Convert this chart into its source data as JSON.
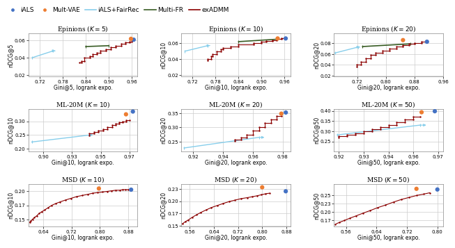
{
  "subplots": [
    {
      "title": "Epinions ($K = 5$)",
      "xlabel": "Gini@5, logrank expo.",
      "ylabel": "nDCG@5",
      "xlim": [
        0.69,
        0.975
      ],
      "ylim": [
        0.018,
        0.068
      ],
      "xticks": [
        0.72,
        0.78,
        0.84,
        0.9,
        0.96
      ],
      "yticks": [
        0.02,
        0.04,
        0.06
      ],
      "iALS_point": [
        0.965,
        0.061
      ],
      "multivae_point": [
        0.958,
        0.062
      ],
      "fairrec_curve": {
        "x": [
          0.7,
          0.755
        ],
        "y": [
          0.04,
          0.048
        ],
        "arrow": true
      },
      "multifr_curve": {
        "x": [
          0.84,
          0.9
        ],
        "y": [
          0.053,
          0.054
        ]
      },
      "exadmm_curve": {
        "x": [
          0.824,
          0.828,
          0.828,
          0.836,
          0.836,
          0.85,
          0.85,
          0.858,
          0.858,
          0.868,
          0.868,
          0.878,
          0.878,
          0.892,
          0.892,
          0.906,
          0.906,
          0.918,
          0.918,
          0.932,
          0.932,
          0.944,
          0.944,
          0.954,
          0.954,
          0.96,
          0.96,
          0.964
        ],
        "y": [
          0.034,
          0.034,
          0.036,
          0.036,
          0.04,
          0.04,
          0.042,
          0.042,
          0.044,
          0.044,
          0.046,
          0.046,
          0.048,
          0.048,
          0.05,
          0.05,
          0.052,
          0.052,
          0.054,
          0.054,
          0.056,
          0.056,
          0.058,
          0.058,
          0.059,
          0.059,
          0.061,
          0.061
        ]
      }
    },
    {
      "title": "Epinions ($K = 10$)",
      "xlabel": "Gini@10, logrank expo.",
      "ylabel": "nDCG@10",
      "xlim": [
        0.69,
        0.975
      ],
      "ylim": [
        0.018,
        0.072
      ],
      "xticks": [
        0.72,
        0.78,
        0.84,
        0.9,
        0.96
      ],
      "yticks": [
        0.02,
        0.04,
        0.06
      ],
      "iALS_point": [
        0.963,
        0.066
      ],
      "multivae_point": [
        0.942,
        0.066
      ],
      "fairrec_curve": {
        "x": [
          0.7,
          0.76
        ],
        "y": [
          0.05,
          0.057
        ],
        "arrow": true
      },
      "multifr_curve": {
        "x": [
          0.84,
          0.94
        ],
        "y": [
          0.062,
          0.065
        ]
      },
      "exadmm_curve": {
        "x": [
          0.76,
          0.76,
          0.768,
          0.768,
          0.772,
          0.772,
          0.782,
          0.782,
          0.794,
          0.794,
          0.8,
          0.8,
          0.82,
          0.82,
          0.84,
          0.84,
          0.88,
          0.88,
          0.9,
          0.9,
          0.912,
          0.912,
          0.928,
          0.928,
          0.94,
          0.94,
          0.952,
          0.952,
          0.962
        ],
        "y": [
          0.038,
          0.04,
          0.04,
          0.044,
          0.044,
          0.046,
          0.046,
          0.05,
          0.05,
          0.052,
          0.052,
          0.054,
          0.054,
          0.056,
          0.056,
          0.058,
          0.058,
          0.06,
          0.06,
          0.062,
          0.062,
          0.063,
          0.063,
          0.064,
          0.064,
          0.065,
          0.065,
          0.066,
          0.066
        ]
      }
    },
    {
      "title": "Epinions ($K = 20$)",
      "xlabel": "Gini@20, logrank expo.",
      "ylabel": "nDCG@20",
      "xlim": [
        0.655,
        0.955
      ],
      "ylim": [
        0.018,
        0.098
      ],
      "xticks": [
        0.72,
        0.8,
        0.88,
        0.96
      ],
      "yticks": [
        0.02,
        0.04,
        0.06,
        0.08
      ],
      "iALS_point": [
        0.915,
        0.083
      ],
      "multivae_point": [
        0.848,
        0.086
      ],
      "fairrec_curve": {
        "x": [
          0.658,
          0.722
        ],
        "y": [
          0.062,
          0.073
        ],
        "arrow": true
      },
      "multifr_curve": {
        "x": [
          0.735,
          0.868
        ],
        "y": [
          0.074,
          0.079
        ]
      },
      "exadmm_curve": {
        "x": [
          0.718,
          0.718,
          0.73,
          0.73,
          0.745,
          0.745,
          0.758,
          0.758,
          0.772,
          0.772,
          0.79,
          0.79,
          0.81,
          0.81,
          0.83,
          0.83,
          0.848,
          0.848,
          0.864,
          0.864,
          0.88,
          0.88,
          0.9,
          0.9,
          0.914
        ],
        "y": [
          0.036,
          0.04,
          0.04,
          0.046,
          0.046,
          0.052,
          0.052,
          0.058,
          0.058,
          0.062,
          0.062,
          0.066,
          0.066,
          0.07,
          0.07,
          0.074,
          0.074,
          0.077,
          0.077,
          0.079,
          0.079,
          0.081,
          0.081,
          0.083,
          0.083
        ]
      }
    },
    {
      "title": "ML-20M ($K = 10$)",
      "xlabel": "Gini@10, logrank expo.",
      "ylabel": "nDCG@10",
      "xlim": [
        0.887,
        0.982
      ],
      "ylim": [
        0.19,
        0.345
      ],
      "xticks": [
        0.9,
        0.925,
        0.95,
        0.975
      ],
      "yticks": [
        0.2,
        0.25,
        0.3
      ],
      "iALS_point": [
        0.978,
        0.335
      ],
      "multivae_point": [
        0.972,
        0.325
      ],
      "fairrec_curve": {
        "x": [
          0.89,
          0.94
        ],
        "y": [
          0.225,
          0.25
        ],
        "arrow": true
      },
      "multifr_curve": null,
      "exadmm_curve": {
        "x": [
          0.94,
          0.94,
          0.944,
          0.944,
          0.948,
          0.948,
          0.952,
          0.952,
          0.956,
          0.956,
          0.96,
          0.96,
          0.963,
          0.963,
          0.966,
          0.966,
          0.969,
          0.969,
          0.972,
          0.972,
          0.975
        ],
        "y": [
          0.248,
          0.255,
          0.255,
          0.26,
          0.26,
          0.265,
          0.265,
          0.27,
          0.27,
          0.278,
          0.278,
          0.285,
          0.285,
          0.29,
          0.29,
          0.296,
          0.296,
          0.3,
          0.3,
          0.303,
          0.303
        ]
      }
    },
    {
      "title": "ML-20M ($K = 20$)",
      "xlabel": "Gini@20, logrank expo.",
      "ylabel": "nDCG@20",
      "xlim": [
        0.912,
        0.985
      ],
      "ylim": [
        0.215,
        0.365
      ],
      "xticks": [
        0.92,
        0.94,
        0.96,
        0.98
      ],
      "yticks": [
        0.25,
        0.3,
        0.35
      ],
      "iALS_point": [
        0.982,
        0.352
      ],
      "multivae_point": [
        0.979,
        0.348
      ],
      "fairrec_curve": {
        "x": [
          0.914,
          0.964
        ],
        "y": [
          0.228,
          0.265
        ],
        "arrow": true
      },
      "multifr_curve": null,
      "exadmm_curve": {
        "x": [
          0.948,
          0.948,
          0.952,
          0.952,
          0.956,
          0.956,
          0.96,
          0.96,
          0.964,
          0.964,
          0.968,
          0.968,
          0.972,
          0.972,
          0.976,
          0.976,
          0.979
        ],
        "y": [
          0.252,
          0.258,
          0.258,
          0.265,
          0.265,
          0.275,
          0.275,
          0.288,
          0.288,
          0.3,
          0.3,
          0.315,
          0.315,
          0.328,
          0.328,
          0.34,
          0.34
        ]
      }
    },
    {
      "title": "ML-20M ($K = 50$)",
      "xlabel": "Gini@50, logrank expo.",
      "ylabel": "nDCG@50",
      "xlim": [
        0.912,
        0.978
      ],
      "ylim": [
        0.2,
        0.41
      ],
      "xticks": [
        0.915,
        0.93,
        0.945,
        0.96,
        0.975
      ],
      "yticks": [
        0.25,
        0.3,
        0.35,
        0.4
      ],
      "iALS_point": [
        0.973,
        0.398
      ],
      "multivae_point": [
        0.965,
        0.393
      ],
      "fairrec_curve": {
        "x": [
          0.914,
          0.964
        ],
        "y": [
          0.282,
          0.33
        ],
        "arrow": true
      },
      "multifr_curve": null,
      "exadmm_curve": {
        "x": [
          0.915,
          0.915,
          0.92,
          0.92,
          0.925,
          0.925,
          0.93,
          0.93,
          0.935,
          0.935,
          0.94,
          0.94,
          0.945,
          0.945,
          0.95,
          0.95,
          0.955,
          0.955,
          0.96,
          0.96,
          0.964
        ],
        "y": [
          0.27,
          0.276,
          0.276,
          0.282,
          0.282,
          0.29,
          0.29,
          0.3,
          0.3,
          0.31,
          0.31,
          0.32,
          0.32,
          0.332,
          0.332,
          0.344,
          0.344,
          0.356,
          0.356,
          0.37,
          0.37
        ]
      }
    },
    {
      "title": "MSD ($K = 10$)",
      "xlabel": "Gini@10, logrank expo.",
      "ylabel": "nDCG@10",
      "xlim": [
        0.598,
        0.906
      ],
      "ylim": [
        0.138,
        0.212
      ],
      "xticks": [
        0.64,
        0.72,
        0.8,
        0.88
      ],
      "yticks": [
        0.15,
        0.175,
        0.2
      ],
      "iALS_point": [
        0.888,
        0.202
      ],
      "multivae_point": [
        0.797,
        0.204
      ],
      "fairrec_curve": null,
      "multifr_curve": null,
      "exadmm_curve": {
        "x": [
          0.602,
          0.605,
          0.61,
          0.615,
          0.622,
          0.628,
          0.636,
          0.644,
          0.654,
          0.664,
          0.675,
          0.688,
          0.702,
          0.718,
          0.734,
          0.75,
          0.766,
          0.78,
          0.794,
          0.808,
          0.82,
          0.832,
          0.844,
          0.856,
          0.864,
          0.872,
          0.88
        ],
        "y": [
          0.146,
          0.148,
          0.151,
          0.154,
          0.157,
          0.161,
          0.164,
          0.167,
          0.171,
          0.175,
          0.178,
          0.181,
          0.184,
          0.187,
          0.19,
          0.192,
          0.194,
          0.196,
          0.197,
          0.198,
          0.199,
          0.2,
          0.201,
          0.201,
          0.202,
          0.202,
          0.202
        ]
      }
    },
    {
      "title": "MSD ($K = 20$)",
      "xlabel": "Gini@20, logrank expo.",
      "ylabel": "nDCG@20",
      "xlim": [
        0.532,
        0.893
      ],
      "ylim": [
        0.148,
        0.235
      ],
      "xticks": [
        0.56,
        0.64,
        0.72,
        0.8,
        0.88
      ],
      "yticks": [
        0.15,
        0.175,
        0.2,
        0.225
      ],
      "iALS_point": [
        0.878,
        0.22
      ],
      "multivae_point": [
        0.8,
        0.228
      ],
      "fairrec_curve": null,
      "multifr_curve": null,
      "exadmm_curve": {
        "x": [
          0.536,
          0.545,
          0.556,
          0.568,
          0.582,
          0.597,
          0.614,
          0.632,
          0.651,
          0.67,
          0.69,
          0.71,
          0.73,
          0.75,
          0.768,
          0.784,
          0.798,
          0.812,
          0.824
        ],
        "y": [
          0.154,
          0.158,
          0.162,
          0.167,
          0.172,
          0.177,
          0.182,
          0.187,
          0.191,
          0.195,
          0.199,
          0.202,
          0.205,
          0.207,
          0.209,
          0.211,
          0.213,
          0.215,
          0.216
        ]
      }
    },
    {
      "title": "MSD ($K = 50$)",
      "xlabel": "Gini@50, logrank expo.",
      "ylabel": "nDCG@50",
      "xlim": [
        0.528,
        0.815
      ],
      "ylim": [
        0.155,
        0.285
      ],
      "xticks": [
        0.56,
        0.64,
        0.72,
        0.8
      ],
      "yticks": [
        0.175,
        0.2,
        0.225,
        0.25
      ],
      "iALS_point": [
        0.8,
        0.268
      ],
      "multivae_point": [
        0.745,
        0.27
      ],
      "fairrec_curve": null,
      "multifr_curve": null,
      "exadmm_curve": {
        "x": [
          0.532,
          0.542,
          0.555,
          0.57,
          0.586,
          0.604,
          0.623,
          0.643,
          0.664,
          0.685,
          0.706,
          0.726,
          0.746,
          0.764,
          0.78
        ],
        "y": [
          0.163,
          0.168,
          0.174,
          0.181,
          0.188,
          0.196,
          0.204,
          0.213,
          0.221,
          0.23,
          0.238,
          0.244,
          0.25,
          0.254,
          0.258
        ]
      }
    }
  ],
  "colors": {
    "iALS": "#4472C4",
    "multivae": "#ED7D31",
    "fairrec": "#87CEEB",
    "multifr": "#375B23",
    "exadmm": "#8B0000"
  }
}
